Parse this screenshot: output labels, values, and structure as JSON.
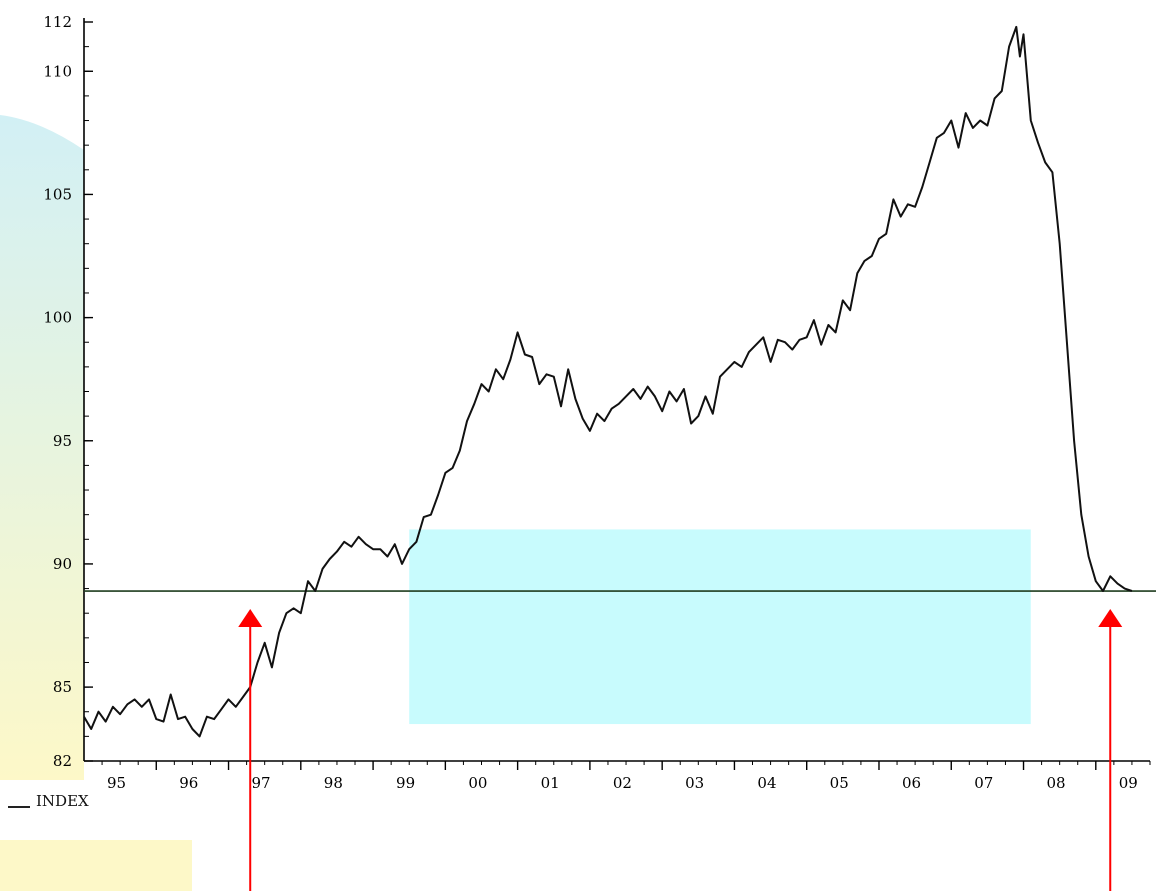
{
  "colors": {
    "line": "#111111",
    "axis": "#000000",
    "reference_line": "#1f3d1f",
    "highlight_box": "#c8fbfd",
    "arrow": "#ff0000",
    "bg_left_top": "#d2f0f5",
    "bg_left_bottom": "#fdf8c8"
  },
  "chart_data": {
    "type": "line",
    "title": "",
    "xlabel": "",
    "ylabel": "",
    "ylim": [
      82,
      112
    ],
    "y_ticks": [
      "112",
      "110",
      "105",
      "100",
      "95",
      "90",
      "85",
      "82"
    ],
    "x_tick_labels": [
      "95",
      "96",
      "97",
      "98",
      "99",
      "00",
      "01",
      "02",
      "03",
      "04",
      "05",
      "06",
      "07",
      "08",
      "09"
    ],
    "xlim": [
      1995.0,
      2009.75
    ],
    "legend": "bottom-left",
    "grid": false,
    "reference_line": {
      "y": 88.9
    },
    "highlight_box": {
      "x": [
        1999.5,
        2008.1
      ],
      "y": [
        83.5,
        91.4
      ]
    },
    "arrows": [
      {
        "x": 1997.3,
        "points_to": 88.9
      },
      {
        "x": 2009.2,
        "points_to": 88.9
      }
    ],
    "series": [
      {
        "name": "INDEX",
        "points": [
          [
            1995.0,
            83.8
          ],
          [
            1995.1,
            83.3
          ],
          [
            1995.2,
            84.0
          ],
          [
            1995.3,
            83.6
          ],
          [
            1995.4,
            84.2
          ],
          [
            1995.5,
            83.9
          ],
          [
            1995.6,
            84.3
          ],
          [
            1995.7,
            84.5
          ],
          [
            1995.8,
            84.2
          ],
          [
            1995.9,
            84.5
          ],
          [
            1996.0,
            83.7
          ],
          [
            1996.1,
            83.6
          ],
          [
            1996.2,
            84.7
          ],
          [
            1996.3,
            83.7
          ],
          [
            1996.4,
            83.8
          ],
          [
            1996.5,
            83.3
          ],
          [
            1996.6,
            83.0
          ],
          [
            1996.7,
            83.8
          ],
          [
            1996.8,
            83.7
          ],
          [
            1996.9,
            84.1
          ],
          [
            1997.0,
            84.5
          ],
          [
            1997.1,
            84.2
          ],
          [
            1997.2,
            84.6
          ],
          [
            1997.3,
            85.0
          ],
          [
            1997.4,
            86.0
          ],
          [
            1997.5,
            86.8
          ],
          [
            1997.6,
            85.8
          ],
          [
            1997.7,
            87.2
          ],
          [
            1997.8,
            88.0
          ],
          [
            1997.9,
            88.2
          ],
          [
            1998.0,
            88.0
          ],
          [
            1998.1,
            89.3
          ],
          [
            1998.2,
            88.9
          ],
          [
            1998.3,
            89.8
          ],
          [
            1998.4,
            90.2
          ],
          [
            1998.5,
            90.5
          ],
          [
            1998.6,
            90.9
          ],
          [
            1998.7,
            90.7
          ],
          [
            1998.8,
            91.1
          ],
          [
            1998.9,
            90.8
          ],
          [
            1999.0,
            90.6
          ],
          [
            1999.1,
            90.6
          ],
          [
            1999.2,
            90.3
          ],
          [
            1999.3,
            90.8
          ],
          [
            1999.4,
            90.0
          ],
          [
            1999.5,
            90.6
          ],
          [
            1999.6,
            90.9
          ],
          [
            1999.7,
            91.9
          ],
          [
            1999.8,
            92.0
          ],
          [
            1999.9,
            92.8
          ],
          [
            2000.0,
            93.7
          ],
          [
            2000.1,
            93.9
          ],
          [
            2000.2,
            94.6
          ],
          [
            2000.3,
            95.8
          ],
          [
            2000.4,
            96.5
          ],
          [
            2000.5,
            97.3
          ],
          [
            2000.6,
            97.0
          ],
          [
            2000.7,
            97.9
          ],
          [
            2000.8,
            97.5
          ],
          [
            2000.9,
            98.3
          ],
          [
            2001.0,
            99.4
          ],
          [
            2001.1,
            98.5
          ],
          [
            2001.2,
            98.4
          ],
          [
            2001.3,
            97.3
          ],
          [
            2001.4,
            97.7
          ],
          [
            2001.5,
            97.6
          ],
          [
            2001.6,
            96.4
          ],
          [
            2001.7,
            97.9
          ],
          [
            2001.8,
            96.7
          ],
          [
            2001.9,
            95.9
          ],
          [
            2002.0,
            95.4
          ],
          [
            2002.1,
            96.1
          ],
          [
            2002.2,
            95.8
          ],
          [
            2002.3,
            96.3
          ],
          [
            2002.4,
            96.5
          ],
          [
            2002.5,
            96.8
          ],
          [
            2002.6,
            97.1
          ],
          [
            2002.7,
            96.7
          ],
          [
            2002.8,
            97.2
          ],
          [
            2002.9,
            96.8
          ],
          [
            2003.0,
            96.2
          ],
          [
            2003.1,
            97.0
          ],
          [
            2003.2,
            96.6
          ],
          [
            2003.3,
            97.1
          ],
          [
            2003.4,
            95.7
          ],
          [
            2003.5,
            96.0
          ],
          [
            2003.6,
            96.8
          ],
          [
            2003.7,
            96.1
          ],
          [
            2003.8,
            97.6
          ],
          [
            2003.9,
            97.9
          ],
          [
            2004.0,
            98.2
          ],
          [
            2004.1,
            98.0
          ],
          [
            2004.2,
            98.6
          ],
          [
            2004.3,
            98.9
          ],
          [
            2004.4,
            99.2
          ],
          [
            2004.5,
            98.2
          ],
          [
            2004.6,
            99.1
          ],
          [
            2004.7,
            99.0
          ],
          [
            2004.8,
            98.7
          ],
          [
            2004.9,
            99.1
          ],
          [
            2005.0,
            99.2
          ],
          [
            2005.1,
            99.9
          ],
          [
            2005.2,
            98.9
          ],
          [
            2005.3,
            99.7
          ],
          [
            2005.4,
            99.4
          ],
          [
            2005.5,
            100.7
          ],
          [
            2005.6,
            100.3
          ],
          [
            2005.7,
            101.8
          ],
          [
            2005.8,
            102.3
          ],
          [
            2005.9,
            102.5
          ],
          [
            2006.0,
            103.2
          ],
          [
            2006.1,
            103.4
          ],
          [
            2006.2,
            104.8
          ],
          [
            2006.3,
            104.1
          ],
          [
            2006.4,
            104.6
          ],
          [
            2006.5,
            104.5
          ],
          [
            2006.6,
            105.3
          ],
          [
            2006.7,
            106.3
          ],
          [
            2006.8,
            107.3
          ],
          [
            2006.9,
            107.5
          ],
          [
            2007.0,
            108.0
          ],
          [
            2007.1,
            106.9
          ],
          [
            2007.2,
            108.3
          ],
          [
            2007.3,
            107.7
          ],
          [
            2007.4,
            108.0
          ],
          [
            2007.5,
            107.8
          ],
          [
            2007.6,
            108.9
          ],
          [
            2007.7,
            109.2
          ],
          [
            2007.8,
            111.0
          ],
          [
            2007.9,
            111.8
          ],
          [
            2007.95,
            110.6
          ],
          [
            2008.0,
            111.5
          ],
          [
            2008.1,
            108.0
          ],
          [
            2008.2,
            107.1
          ],
          [
            2008.3,
            106.3
          ],
          [
            2008.4,
            105.9
          ],
          [
            2008.5,
            103.0
          ],
          [
            2008.6,
            99.0
          ],
          [
            2008.7,
            95.0
          ],
          [
            2008.8,
            92.0
          ],
          [
            2008.9,
            90.3
          ],
          [
            2009.0,
            89.3
          ],
          [
            2009.1,
            88.9
          ],
          [
            2009.2,
            89.5
          ],
          [
            2009.3,
            89.2
          ],
          [
            2009.4,
            89.0
          ],
          [
            2009.5,
            88.9
          ]
        ]
      }
    ]
  }
}
